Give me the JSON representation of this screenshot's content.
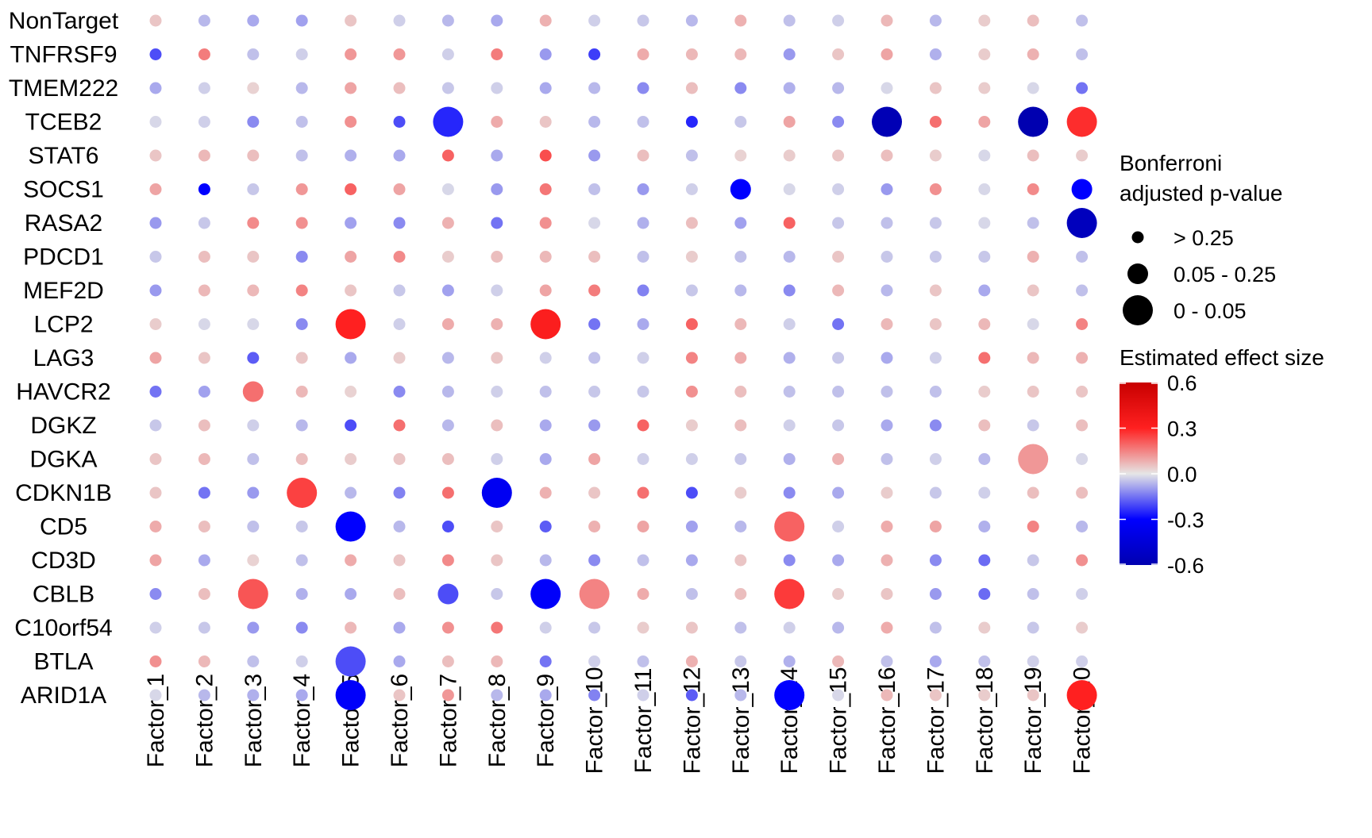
{
  "chart_data": {
    "type": "dot-matrix",
    "rows": [
      "NonTarget",
      "TNFRSF9",
      "TMEM222",
      "TCEB2",
      "STAT6",
      "SOCS1",
      "RASA2",
      "PDCD1",
      "MEF2D",
      "LCP2",
      "LAG3",
      "HAVCR2",
      "DGKZ",
      "DGKA",
      "CDKN1B",
      "CD5",
      "CD3D",
      "CBLB",
      "C10orf54",
      "BTLA",
      "ARID1A"
    ],
    "columns": [
      "Factor_1",
      "Factor_2",
      "Factor_3",
      "Factor_4",
      "Factor_5",
      "Factor_6",
      "Factor_7",
      "Factor_8",
      "Factor_9",
      "Factor_10",
      "Factor_11",
      "Factor_12",
      "Factor_13",
      "Factor_14",
      "Factor_15",
      "Factor_16",
      "Factor_17",
      "Factor_18",
      "Factor_19",
      "Factor_20"
    ],
    "effect_size": [
      [
        0.05,
        -0.06,
        -0.08,
        -0.09,
        0.05,
        -0.03,
        -0.06,
        -0.08,
        0.08,
        -0.03,
        -0.04,
        -0.06,
        0.08,
        -0.05,
        -0.03,
        0.07,
        -0.06,
        0.04,
        0.06,
        -0.05
      ],
      [
        -0.2,
        0.16,
        -0.05,
        -0.03,
        0.12,
        0.12,
        -0.03,
        0.16,
        -0.1,
        -0.22,
        0.09,
        0.07,
        0.07,
        -0.1,
        0.05,
        0.1,
        -0.07,
        0.04,
        0.08,
        -0.05
      ],
      [
        -0.08,
        -0.03,
        0.03,
        -0.06,
        0.1,
        0.06,
        -0.04,
        -0.03,
        -0.08,
        -0.06,
        -0.12,
        0.06,
        -0.12,
        -0.07,
        -0.06,
        -0.02,
        0.05,
        0.04,
        -0.02,
        -0.15
      ],
      [
        -0.02,
        -0.03,
        -0.12,
        -0.05,
        0.13,
        -0.2,
        -0.25,
        0.09,
        0.05,
        -0.06,
        -0.05,
        -0.25,
        -0.04,
        0.1,
        -0.12,
        -0.58,
        0.18,
        0.1,
        -0.6,
        0.28
      ],
      [
        0.05,
        0.07,
        0.06,
        -0.05,
        -0.07,
        -0.08,
        0.2,
        -0.08,
        0.23,
        -0.1,
        0.06,
        -0.05,
        0.03,
        0.04,
        0.05,
        0.06,
        0.04,
        -0.02,
        0.06,
        0.04
      ],
      [
        0.1,
        -0.3,
        -0.04,
        0.12,
        0.2,
        0.1,
        -0.02,
        -0.1,
        0.17,
        -0.05,
        -0.1,
        -0.03,
        -0.3,
        -0.02,
        -0.03,
        -0.1,
        0.13,
        -0.02,
        0.14,
        -0.3
      ],
      [
        -0.1,
        -0.04,
        0.14,
        0.13,
        -0.09,
        -0.12,
        0.08,
        -0.15,
        0.13,
        -0.02,
        -0.07,
        0.06,
        -0.09,
        0.2,
        -0.04,
        -0.05,
        -0.04,
        -0.02,
        -0.05,
        -0.55
      ],
      [
        -0.04,
        0.06,
        0.05,
        -0.12,
        0.1,
        0.14,
        0.04,
        0.06,
        0.07,
        0.06,
        -0.05,
        0.04,
        -0.05,
        -0.06,
        0.05,
        -0.04,
        -0.04,
        -0.04,
        0.08,
        -0.05
      ],
      [
        -0.1,
        0.07,
        0.07,
        0.15,
        0.05,
        -0.04,
        -0.09,
        -0.03,
        0.1,
        0.16,
        -0.13,
        -0.04,
        -0.06,
        -0.12,
        0.07,
        -0.06,
        0.05,
        -0.08,
        0.05,
        -0.05
      ],
      [
        0.04,
        -0.02,
        -0.02,
        -0.12,
        0.3,
        -0.03,
        0.09,
        0.08,
        0.32,
        -0.15,
        -0.08,
        0.2,
        0.07,
        -0.03,
        -0.15,
        0.07,
        0.05,
        0.07,
        -0.02,
        0.15
      ],
      [
        0.1,
        0.05,
        -0.18,
        0.05,
        -0.08,
        0.04,
        -0.06,
        0.05,
        -0.03,
        -0.05,
        -0.03,
        0.15,
        0.09,
        -0.07,
        -0.04,
        -0.08,
        -0.03,
        0.18,
        0.07,
        0.08
      ],
      [
        -0.15,
        -0.09,
        0.18,
        0.07,
        0.03,
        -0.12,
        -0.06,
        -0.03,
        -0.05,
        -0.04,
        -0.04,
        0.13,
        0.06,
        -0.05,
        -0.05,
        -0.05,
        -0.05,
        0.04,
        0.05,
        0.05
      ],
      [
        -0.04,
        0.06,
        -0.03,
        -0.06,
        -0.2,
        0.18,
        -0.06,
        0.06,
        -0.08,
        -0.1,
        0.2,
        0.04,
        0.06,
        -0.03,
        -0.04,
        -0.08,
        -0.12,
        0.06,
        -0.04,
        0.06
      ],
      [
        0.05,
        0.07,
        -0.05,
        0.06,
        0.04,
        0.05,
        0.06,
        -0.03,
        -0.08,
        0.1,
        -0.03,
        -0.03,
        -0.04,
        -0.07,
        0.08,
        -0.05,
        -0.03,
        -0.06,
        0.12,
        -0.02
      ],
      [
        0.05,
        -0.15,
        -0.1,
        0.25,
        -0.06,
        -0.13,
        0.18,
        -0.35,
        0.08,
        0.05,
        0.18,
        -0.2,
        0.04,
        -0.12,
        -0.08,
        0.04,
        -0.04,
        -0.03,
        0.06,
        0.06
      ],
      [
        0.09,
        0.06,
        -0.05,
        -0.04,
        -0.3,
        -0.06,
        -0.2,
        0.05,
        -0.18,
        0.08,
        0.1,
        -0.09,
        -0.06,
        0.2,
        -0.03,
        0.09,
        0.1,
        -0.07,
        0.15,
        -0.06
      ],
      [
        0.1,
        -0.08,
        0.03,
        -0.05,
        0.09,
        0.05,
        0.14,
        0.05,
        -0.06,
        -0.12,
        -0.05,
        -0.08,
        0.05,
        -0.12,
        -0.08,
        0.08,
        -0.12,
        -0.16,
        -0.04,
        0.13
      ],
      [
        -0.12,
        0.06,
        0.22,
        -0.07,
        -0.08,
        0.06,
        -0.2,
        -0.04,
        -0.32,
        0.15,
        0.09,
        -0.05,
        0.06,
        0.26,
        0.04,
        0.05,
        -0.1,
        -0.16,
        -0.05,
        -0.03
      ],
      [
        -0.03,
        -0.04,
        -0.1,
        -0.12,
        0.07,
        -0.08,
        0.13,
        0.17,
        -0.03,
        -0.04,
        0.04,
        0.05,
        -0.05,
        -0.03,
        -0.06,
        0.09,
        -0.05,
        0.04,
        -0.04,
        0.04
      ],
      [
        0.13,
        0.07,
        -0.05,
        -0.03,
        -0.2,
        -0.08,
        0.06,
        0.07,
        -0.15,
        -0.03,
        -0.05,
        0.08,
        -0.04,
        -0.07,
        0.07,
        -0.05,
        -0.08,
        -0.05,
        -0.03,
        -0.03
      ],
      [
        -0.02,
        -0.06,
        -0.07,
        -0.08,
        -0.32,
        0.05,
        0.12,
        -0.06,
        -0.08,
        -0.13,
        -0.03,
        -0.18,
        -0.06,
        -0.3,
        -0.02,
        0.07,
        0.05,
        0.04,
        0.05,
        0.3
      ]
    ],
    "pvalue_bin": [
      [
        0,
        0,
        0,
        0,
        0,
        0,
        0,
        0,
        0,
        0,
        0,
        0,
        0,
        0,
        0,
        0,
        0,
        0,
        0,
        0
      ],
      [
        0,
        0,
        0,
        0,
        0,
        0,
        0,
        0,
        0,
        0,
        0,
        0,
        0,
        0,
        0,
        0,
        0,
        0,
        0,
        0
      ],
      [
        0,
        0,
        0,
        0,
        0,
        0,
        0,
        0,
        0,
        0,
        0,
        0,
        0,
        0,
        0,
        0,
        0,
        0,
        0,
        0
      ],
      [
        0,
        0,
        0,
        0,
        0,
        0,
        2,
        0,
        0,
        0,
        0,
        0,
        0,
        0,
        0,
        2,
        0,
        0,
        2,
        2
      ],
      [
        0,
        0,
        0,
        0,
        0,
        0,
        0,
        0,
        0,
        0,
        0,
        0,
        0,
        0,
        0,
        0,
        0,
        0,
        0,
        0
      ],
      [
        0,
        0,
        0,
        0,
        0,
        0,
        0,
        0,
        0,
        0,
        0,
        0,
        1,
        0,
        0,
        0,
        0,
        0,
        0,
        1
      ],
      [
        0,
        0,
        0,
        0,
        0,
        0,
        0,
        0,
        0,
        0,
        0,
        0,
        0,
        0,
        0,
        0,
        0,
        0,
        0,
        2
      ],
      [
        0,
        0,
        0,
        0,
        0,
        0,
        0,
        0,
        0,
        0,
        0,
        0,
        0,
        0,
        0,
        0,
        0,
        0,
        0,
        0
      ],
      [
        0,
        0,
        0,
        0,
        0,
        0,
        0,
        0,
        0,
        0,
        0,
        0,
        0,
        0,
        0,
        0,
        0,
        0,
        0,
        0
      ],
      [
        0,
        0,
        0,
        0,
        2,
        0,
        0,
        0,
        2,
        0,
        0,
        0,
        0,
        0,
        0,
        0,
        0,
        0,
        0,
        0
      ],
      [
        0,
        0,
        0,
        0,
        0,
        0,
        0,
        0,
        0,
        0,
        0,
        0,
        0,
        0,
        0,
        0,
        0,
        0,
        0,
        0
      ],
      [
        0,
        0,
        1,
        0,
        0,
        0,
        0,
        0,
        0,
        0,
        0,
        0,
        0,
        0,
        0,
        0,
        0,
        0,
        0,
        0
      ],
      [
        0,
        0,
        0,
        0,
        0,
        0,
        0,
        0,
        0,
        0,
        0,
        0,
        0,
        0,
        0,
        0,
        0,
        0,
        0,
        0
      ],
      [
        0,
        0,
        0,
        0,
        0,
        0,
        0,
        0,
        0,
        0,
        0,
        0,
        0,
        0,
        0,
        0,
        0,
        0,
        2,
        0
      ],
      [
        0,
        0,
        0,
        2,
        0,
        0,
        0,
        2,
        0,
        0,
        0,
        0,
        0,
        0,
        0,
        0,
        0,
        0,
        0,
        0
      ],
      [
        0,
        0,
        0,
        0,
        2,
        0,
        0,
        0,
        0,
        0,
        0,
        0,
        0,
        2,
        0,
        0,
        0,
        0,
        0,
        0
      ],
      [
        0,
        0,
        0,
        0,
        0,
        0,
        0,
        0,
        0,
        0,
        0,
        0,
        0,
        0,
        0,
        0,
        0,
        0,
        0,
        0
      ],
      [
        0,
        0,
        2,
        0,
        0,
        0,
        1,
        0,
        2,
        2,
        0,
        0,
        0,
        2,
        0,
        0,
        0,
        0,
        0,
        0
      ],
      [
        0,
        0,
        0,
        0,
        0,
        0,
        0,
        0,
        0,
        0,
        0,
        0,
        0,
        0,
        0,
        0,
        0,
        0,
        0,
        0
      ],
      [
        0,
        0,
        0,
        0,
        2,
        0,
        0,
        0,
        0,
        0,
        0,
        0,
        0,
        0,
        0,
        0,
        0,
        0,
        0,
        0
      ],
      [
        0,
        0,
        0,
        0,
        2,
        0,
        0,
        0,
        0,
        0,
        0,
        0,
        0,
        2,
        0,
        0,
        0,
        0,
        0,
        2
      ]
    ],
    "size_legend": {
      "title_lines": [
        "Bonferroni",
        "adjusted p-value"
      ],
      "entries": [
        "> 0.25",
        "0.05 - 0.25",
        "0 - 0.05"
      ]
    },
    "color_legend": {
      "title": "Estimated effect size",
      "range": [
        -0.6,
        0.6
      ],
      "ticks": [
        0.6,
        0.3,
        0.0,
        -0.3,
        -0.6
      ],
      "tick_labels": [
        "0.6",
        "0.3",
        "0.0",
        "-0.3",
        "-0.6"
      ],
      "colors": {
        "low": "#0000ff",
        "mid": "#e6e6e6",
        "high": "#ff0000"
      }
    }
  }
}
